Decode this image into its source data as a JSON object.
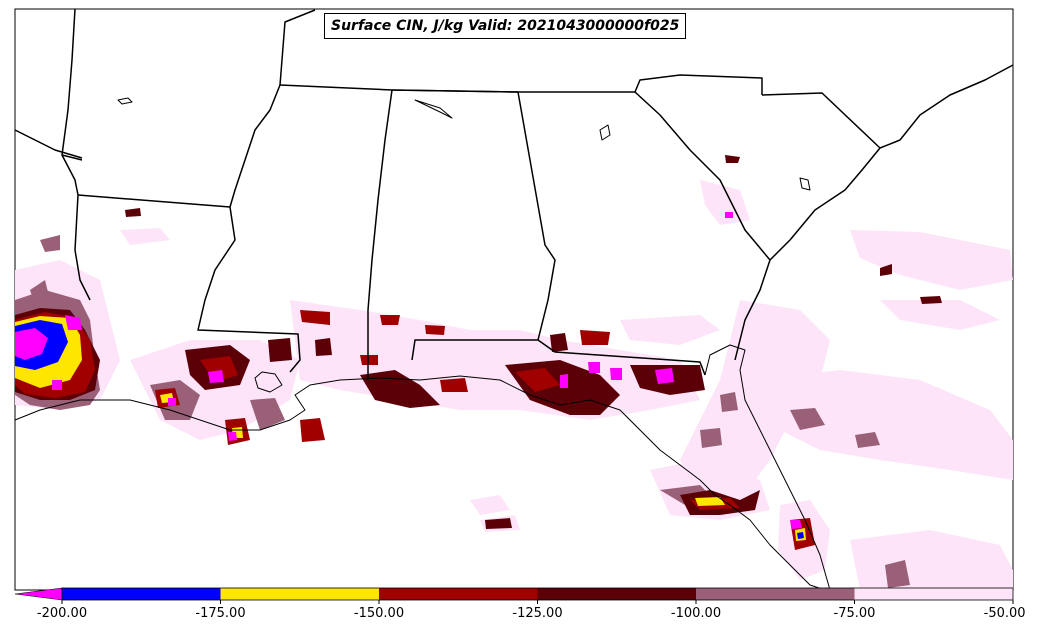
{
  "title": "Surface CIN, J/kg Valid: 2021043000000f025",
  "colorbar": {
    "ticks": [
      "-200.00",
      "-175.00",
      "-150.00",
      "-125.00",
      "-100.00",
      "-75.00",
      "-50.00"
    ],
    "colors": [
      "#0000ff",
      "#ffe600",
      "#a00000",
      "#5c0008",
      "#9a6078",
      "#fde4f8"
    ],
    "under_color": "#ff00ff",
    "extend": "min"
  },
  "colors": {
    "pale": "#fde4f8",
    "mauve": "#9a6078",
    "darkred": "#5c0008",
    "red": "#a00000",
    "yellow": "#ffe600",
    "blue": "#0000ff",
    "magenta": "#ff00ff",
    "border": "#000000"
  }
}
